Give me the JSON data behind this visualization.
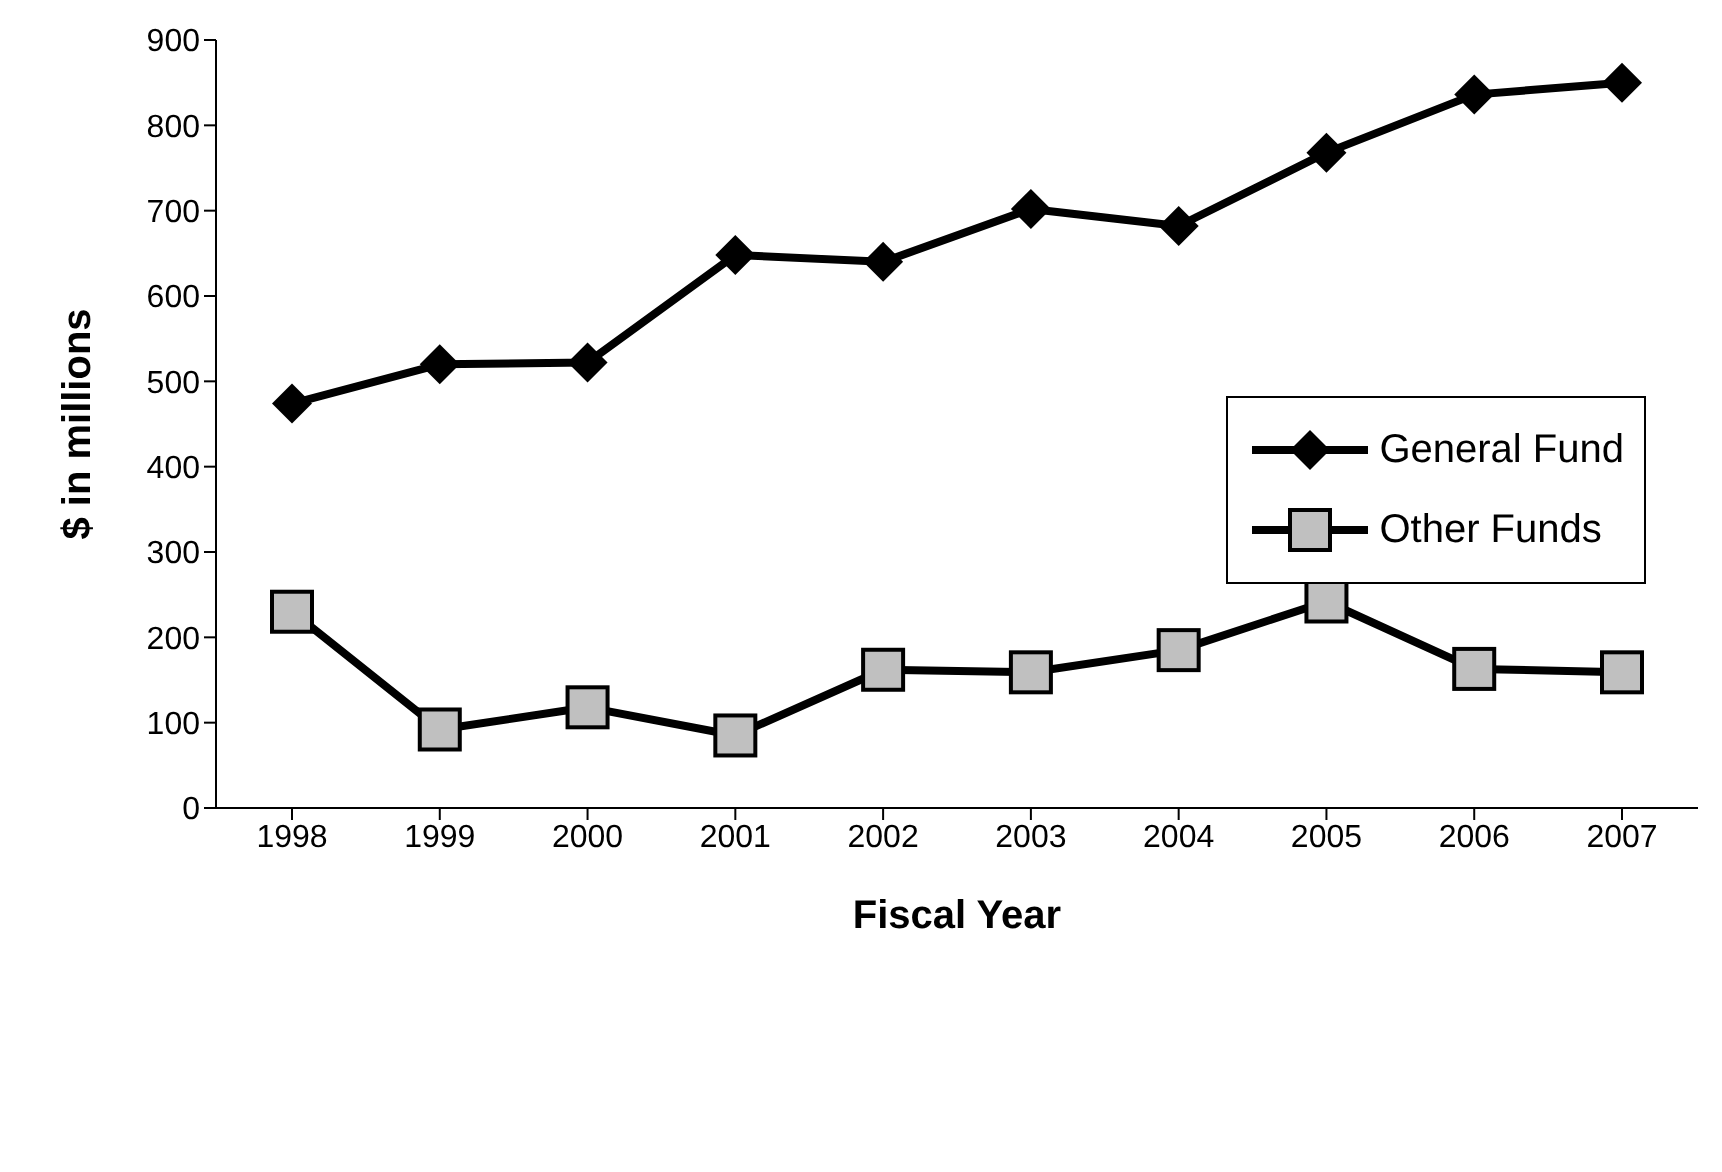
{
  "chart_data": {
    "type": "line",
    "xlabel": "Fiscal Year",
    "ylabel": "$ in millions",
    "categories": [
      "1998",
      "1999",
      "2000",
      "2001",
      "2002",
      "2003",
      "2004",
      "2005",
      "2006",
      "2007"
    ],
    "ylim": [
      0,
      900
    ],
    "yticks": [
      0,
      100,
      200,
      300,
      400,
      500,
      600,
      700,
      800,
      900
    ],
    "legend": "right",
    "grid": false,
    "series": [
      {
        "name": "General Fund",
        "color": "#000000",
        "marker": "diamond",
        "values": [
          474,
          520,
          522,
          648,
          640,
          702,
          682,
          768,
          836,
          850
        ]
      },
      {
        "name": "Other Funds",
        "color": "#000000",
        "marker": "square",
        "values": [
          230,
          92,
          118,
          85,
          162,
          159,
          185,
          242,
          163,
          159
        ]
      }
    ]
  }
}
